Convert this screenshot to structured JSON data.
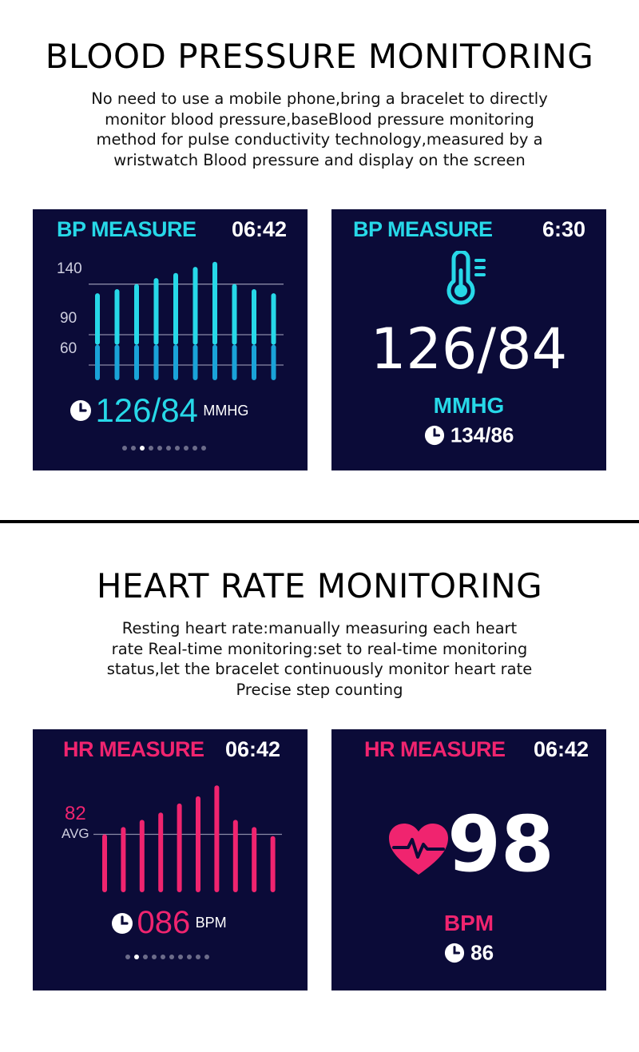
{
  "bp_section": {
    "heading": "BLOOD PRESSURE MONITORING",
    "lines": [
      "No need to use a mobile phone,bring a bracelet to directly",
      "monitor blood pressure,baseBlood pressure monitoring",
      "method for pulse conductivity technology,measured by a",
      "wristwatch Blood pressure and display on the screen"
    ],
    "chart_screen": {
      "title": "BP MEASURE",
      "time": "06:42",
      "y_labels": [
        "140",
        "90",
        "60"
      ],
      "value": "126/84",
      "unit": "MMHG",
      "page_count": 10,
      "active_page": 2
    },
    "value_screen": {
      "title": "BP MEASURE",
      "time": "6:30",
      "icon": "thermometer-icon",
      "value": "126/84",
      "unit": "MMHG",
      "previous": "134/86"
    }
  },
  "hr_section": {
    "heading": "HEART RATE MONITORING",
    "lines": [
      "Resting heart rate:manually measuring each heart",
      "rate Real-time monitoring:set to real-time monitoring",
      "status,let the bracelet continuously monitor heart rate",
      "Precise step counting"
    ],
    "chart_screen": {
      "title": "HR MEASURE",
      "time": "06:42",
      "avg_value": "82",
      "avg_label": "AVG",
      "value": "086",
      "unit": "BPM",
      "page_count": 10,
      "active_page": 1
    },
    "value_screen": {
      "title": "HR MEASURE",
      "time": "06:42",
      "icon": "heart-pulse-icon",
      "value": "98",
      "unit": "BPM",
      "previous": "86"
    }
  },
  "colors": {
    "bp_accent": "#27d8e8",
    "hr_accent": "#f0246f",
    "screen_bg": "#0b0b38"
  },
  "chart_data": [
    {
      "type": "bar",
      "series": [
        {
          "values": [
            131,
            135,
            140,
            146,
            151,
            157,
            162,
            140,
            135,
            131
          ]
        },
        {
          "values": [
            80,
            80,
            80,
            80,
            80,
            80,
            80,
            80,
            80,
            80
          ]
        }
      ],
      "ylim": [
        45,
        165
      ],
      "gridlines": [
        140,
        90,
        60
      ]
    },
    {
      "type": "bar",
      "values": [
        82,
        86,
        90,
        94,
        99,
        103,
        109,
        90,
        86,
        81
      ],
      "ylim": [
        50,
        110
      ],
      "gridlines": [
        82
      ]
    }
  ]
}
